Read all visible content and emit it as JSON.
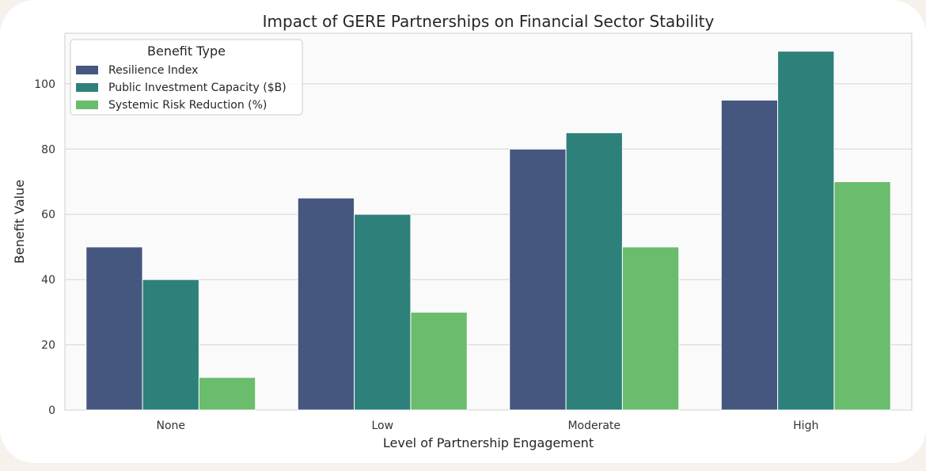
{
  "chart_data": {
    "type": "bar",
    "title": "Impact of GERE Partnerships on Financial Sector Stability",
    "xlabel": "Level of Partnership Engagement",
    "ylabel": "Benefit Value",
    "categories": [
      "None",
      "Low",
      "Moderate",
      "High"
    ],
    "series": [
      {
        "name": "Resilience Index",
        "values": [
          50,
          65,
          80,
          95
        ],
        "color": "#46577f"
      },
      {
        "name": "Public Investment Capacity ($B)",
        "values": [
          40,
          60,
          85,
          110
        ],
        "color": "#2e807b"
      },
      {
        "name": "Systemic Risk Reduction (%)",
        "values": [
          10,
          30,
          50,
          70
        ],
        "color": "#69bd6c"
      }
    ],
    "ylim": [
      0,
      115.5
    ],
    "yticks": [
      0,
      20,
      40,
      60,
      80,
      100
    ],
    "legend": {
      "title": "Benefit Type",
      "placement": "top-left"
    },
    "grid": true,
    "plot_background": "#fafafa",
    "grid_color": "#d3d3d3"
  }
}
